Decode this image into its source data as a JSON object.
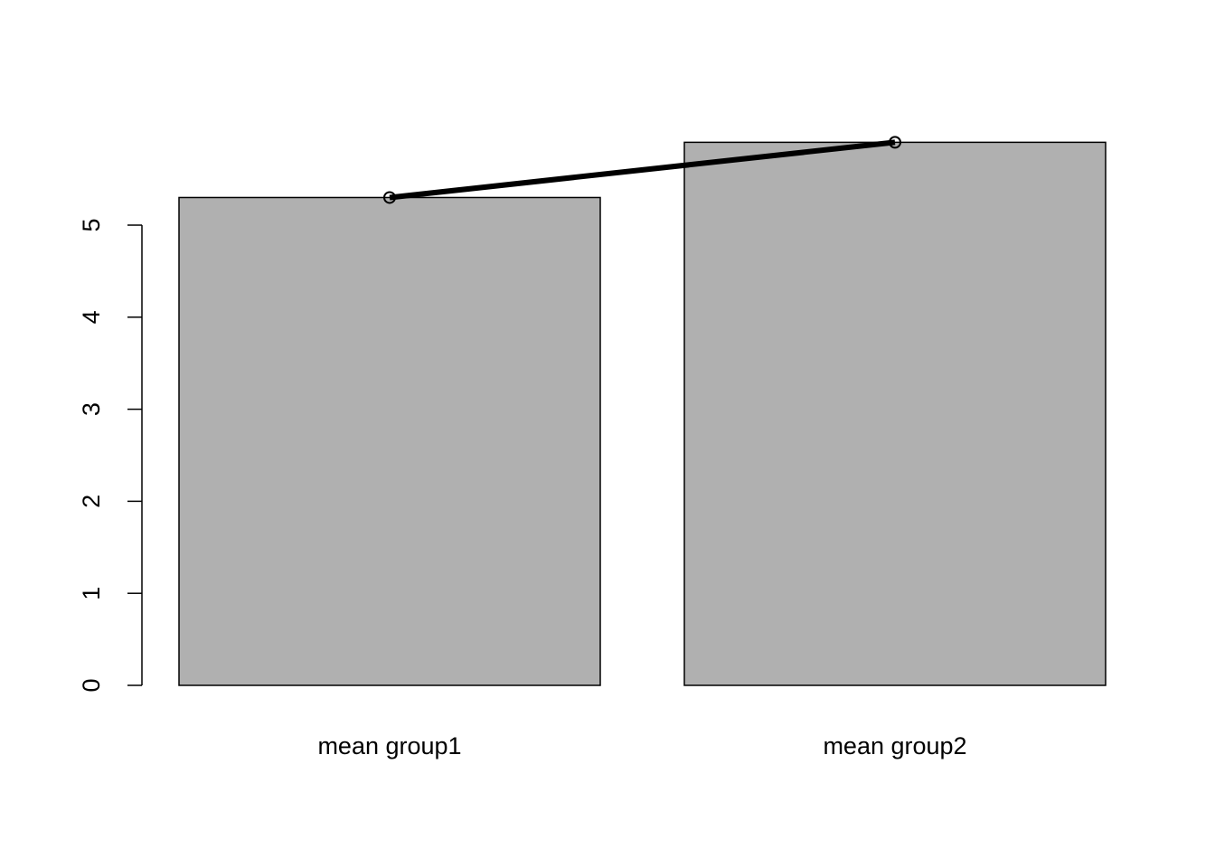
{
  "chart_data": {
    "type": "bar",
    "categories": [
      "mean group1",
      "mean group2"
    ],
    "values": [
      5.3,
      5.9
    ],
    "overlay_line": {
      "values": [
        5.3,
        5.9
      ],
      "marker": "open-circle",
      "color": "#000000"
    },
    "title": "",
    "xlabel": "",
    "ylabel": "",
    "ylim": [
      0,
      5.9
    ],
    "yticks": [
      0,
      1,
      2,
      3,
      4,
      5
    ],
    "ytick_labels": [
      "0",
      "1",
      "2",
      "3",
      "4",
      "5"
    ],
    "grid": false,
    "bar_fill": "#b0b0b0",
    "bar_stroke": "#000000"
  }
}
